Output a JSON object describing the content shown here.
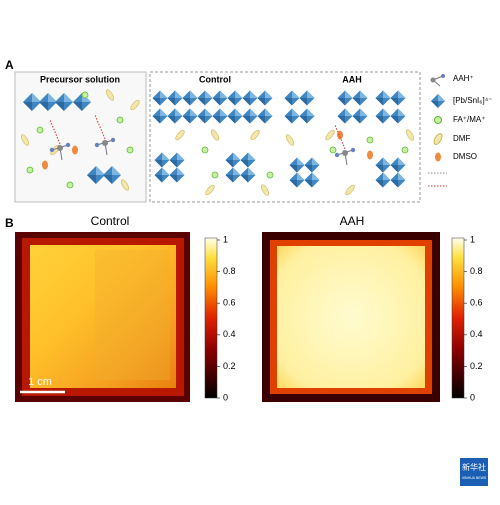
{
  "panel_a": {
    "label": "A",
    "precursor_title": "Precursor solution",
    "control_title": "Control",
    "aah_title": "AAH",
    "legend": [
      "AAH⁺",
      "[Pb/SnI₆]⁴⁻",
      "FA⁺/MA⁺",
      "DMF",
      "DMSO"
    ]
  },
  "panel_b": {
    "label": "B",
    "control_title": "Control",
    "aah_title": "AAH",
    "scale_bar": "1 cm",
    "colorbar_ticks": [
      1,
      0.8,
      0.6,
      0.4,
      0.2,
      0
    ]
  },
  "watermark": {
    "logo": "新华社",
    "sub": "XINHUA NEWS"
  }
}
